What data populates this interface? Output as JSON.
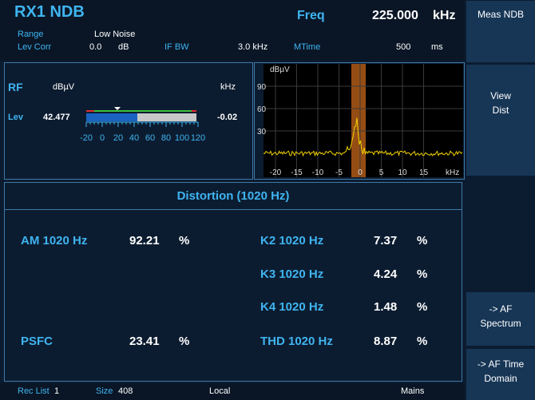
{
  "header": {
    "title": "RX1 NDB",
    "range_label": "Range",
    "range_value": "Low Noise",
    "lev_corr_label": "Lev Corr",
    "lev_corr_value": "0.0",
    "lev_corr_unit": "dB",
    "if_bw_label": "IF BW",
    "if_bw_value": "3.0 kHz",
    "mtime_label": "MTime",
    "mtime_value": "500",
    "mtime_unit": "ms",
    "freq_label": "Freq",
    "freq_value": "225.000",
    "freq_unit": "kHz"
  },
  "rf_panel": {
    "title": "RF",
    "unit": "dBµV",
    "freq_unit": "kHz",
    "lev_label": "Lev",
    "lev_value": "42.477",
    "offset_value": "-0.02",
    "scale": [
      -20,
      0,
      20,
      40,
      60,
      80,
      100,
      120
    ]
  },
  "spectrum": {
    "y_unit": "dBµV",
    "yticks": [
      90,
      60,
      30
    ],
    "xticks": [
      -20,
      -15,
      -10,
      -5,
      0,
      5,
      10,
      15
    ],
    "x_unit": "kHz"
  },
  "distortion": {
    "title": "Distortion (1020 Hz)",
    "left": [
      {
        "label": "AM 1020 Hz",
        "value": "92.21",
        "unit": "%"
      },
      {
        "label": "PSFC",
        "value": "23.41",
        "unit": "%"
      }
    ],
    "right": [
      {
        "label": "K2 1020 Hz",
        "value": "7.37",
        "unit": "%"
      },
      {
        "label": "K3 1020 Hz",
        "value": "4.24",
        "unit": "%"
      },
      {
        "label": "K4 1020 Hz",
        "value": "1.48",
        "unit": "%"
      },
      {
        "label": "THD 1020 Hz",
        "value": "8.87",
        "unit": "%"
      }
    ]
  },
  "status_bar": {
    "rec_list_label": "Rec List",
    "rec_list_value": "1",
    "size_label": "Size",
    "size_value": "408",
    "local": "Local",
    "mains": "Mains"
  },
  "softkeys": [
    [
      "Meas NDB"
    ],
    [
      "View",
      "Dist"
    ],
    [
      "-> AF",
      "Spectrum"
    ],
    [
      "-> AF Time",
      "Domain"
    ]
  ]
}
